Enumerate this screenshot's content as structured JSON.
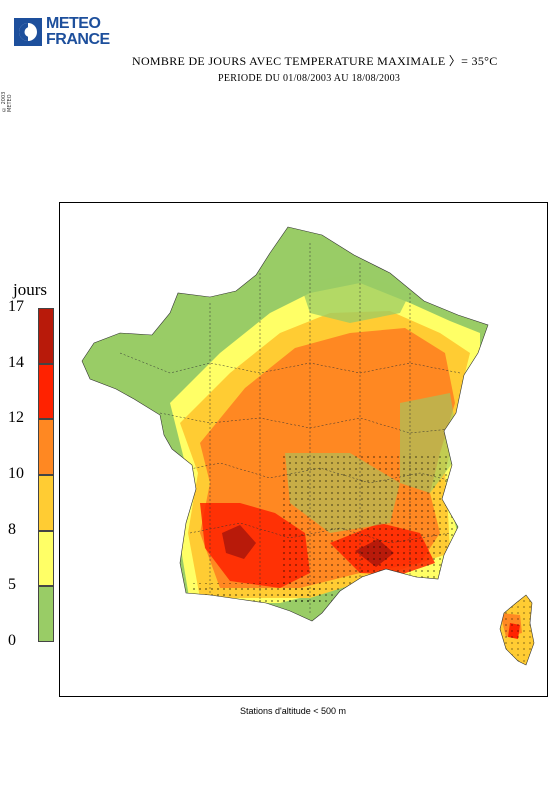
{
  "logo": {
    "line1": "METEO",
    "line2": "FRANCE"
  },
  "title": "NOMBRE DE JOURS AVEC TEMPERATURE MAXIMALE 〉= 35°C",
  "subtitle": "PERIODE DU 01/08/2003 AU 18/08/2003",
  "side_note": "© 2003 METEO",
  "legend": {
    "title": "jours",
    "ticks": [
      "17",
      "14",
      "12",
      "10",
      "8",
      "5",
      "0"
    ],
    "bins": [
      {
        "from": 0,
        "to": 5,
        "color": "#99cc66"
      },
      {
        "from": 5,
        "to": 8,
        "color": "#ffff66"
      },
      {
        "from": 8,
        "to": 10,
        "color": "#ffcc33"
      },
      {
        "from": 10,
        "to": 12,
        "color": "#ff8822"
      },
      {
        "from": 12,
        "to": 14,
        "color": "#ff2200"
      },
      {
        "from": 14,
        "to": 17,
        "color": "#b81a0a"
      }
    ]
  },
  "footer": "Stations d'altitude < 500 m"
}
